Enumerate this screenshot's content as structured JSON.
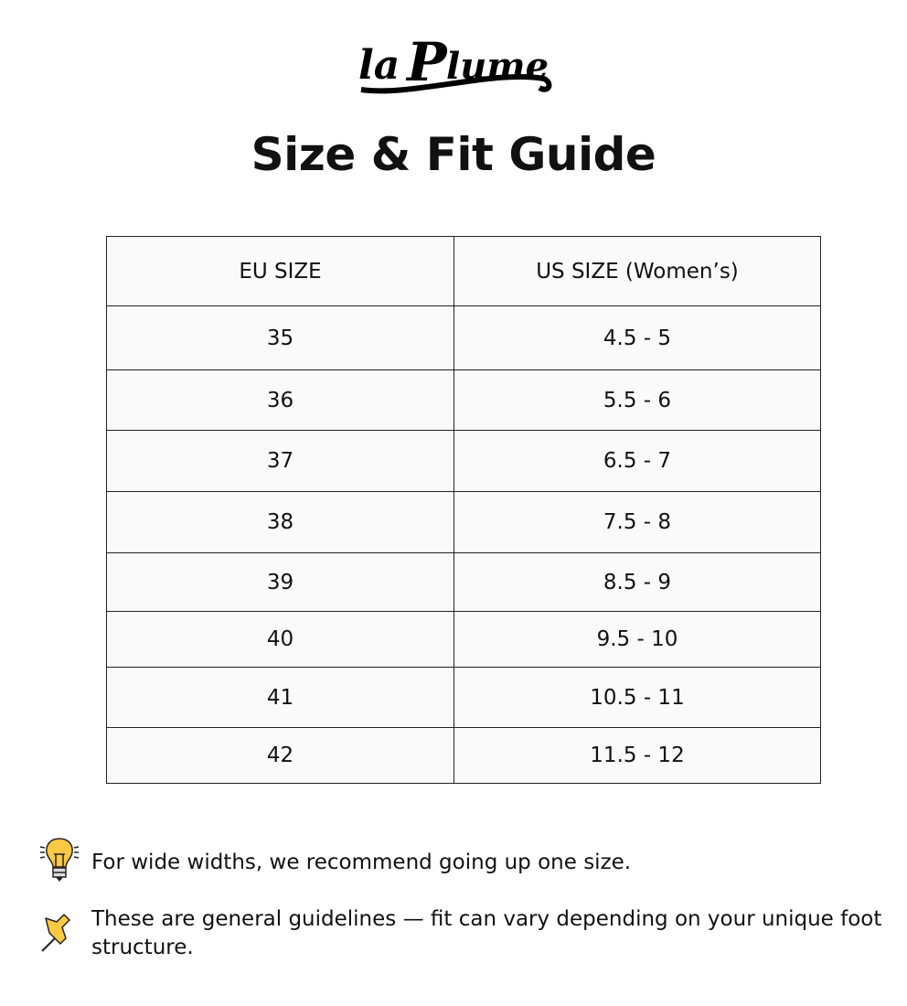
{
  "brand": {
    "logo_text": "la Plume"
  },
  "title": "Size & Fit Guide",
  "table": {
    "headers": [
      "EU SIZE",
      "US SIZE (Women’s)"
    ],
    "rows": [
      [
        "35",
        "4.5 - 5"
      ],
      [
        "36",
        "5.5 - 6"
      ],
      [
        "37",
        "6.5 - 7"
      ],
      [
        "38",
        "7.5 - 8"
      ],
      [
        "39",
        "8.5 - 9"
      ],
      [
        "40",
        "9.5 - 10"
      ],
      [
        "41",
        "10.5 - 11"
      ],
      [
        "42",
        "11.5 - 12"
      ]
    ]
  },
  "notes": [
    {
      "icon": "lightbulb-icon",
      "text": "For wide widths, we recommend going up one size."
    },
    {
      "icon": "pushpin-icon",
      "text": "These are general guidelines — fit can vary depending on your unique foot structure."
    }
  ],
  "colors": {
    "table_bg": "#fafafa",
    "icon_yellow": "#fcc944"
  }
}
